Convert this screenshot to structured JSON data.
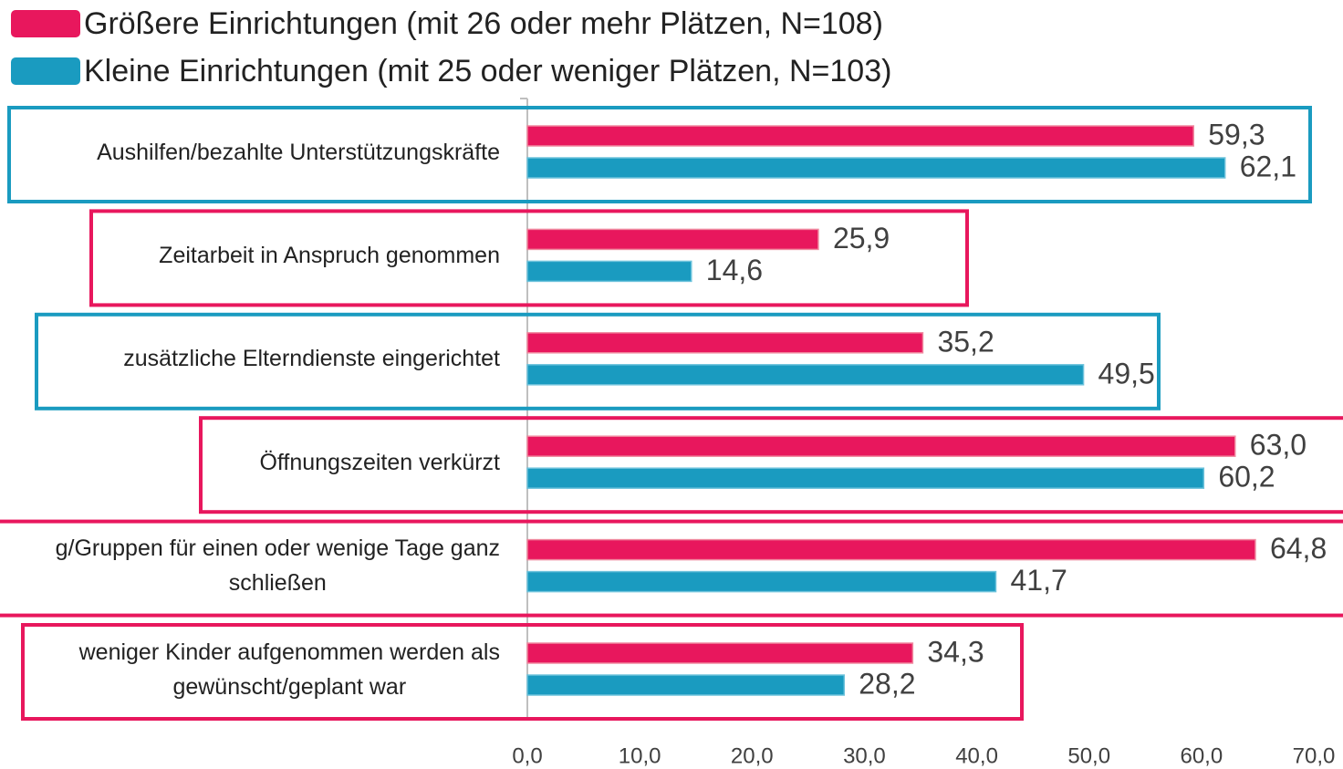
{
  "chart_data": {
    "type": "barh",
    "categories": [
      "Aushilfen/bezahlte Unterstützungskräfte",
      "Zeitarbeit in Anspruch genommen",
      "zusätzliche Elterndienste eingerichtet",
      "Öffnungszeiten verkürzt",
      "g/Gruppen für einen oder wenige Tage ganz\nschließen",
      "weniger Kinder aufgenommen werden als\ngewünscht/geplant war"
    ],
    "series": [
      {
        "name": "Größere Einrichtungen (mit 26 oder mehr Plätzen, N=108)",
        "color": "#e8175d",
        "values": [
          59.3,
          25.9,
          35.2,
          63.0,
          64.8,
          34.3
        ],
        "value_labels": [
          "59,3",
          "25,9",
          "35,2",
          "63,0",
          "64,8",
          "34,3"
        ]
      },
      {
        "name": "Kleine Einrichtungen (mit 25 oder weniger Plätzen, N=103)",
        "color": "#1a9bc0",
        "values": [
          62.1,
          14.6,
          49.5,
          60.2,
          41.7,
          28.2
        ],
        "value_labels": [
          "62,1",
          "14,6",
          "49,5",
          "60,2",
          "41,7",
          "28,2"
        ]
      }
    ],
    "xlim": [
      0,
      70
    ],
    "xticks": [
      {
        "value": 0,
        "label": "0,0"
      },
      {
        "value": 10,
        "label": "10,0"
      },
      {
        "value": 20,
        "label": "20,0"
      },
      {
        "value": 30,
        "label": "30,0"
      },
      {
        "value": 40,
        "label": "40,0"
      },
      {
        "value": 50,
        "label": "50,0"
      },
      {
        "value": 60,
        "label": "60,0"
      },
      {
        "value": 70,
        "label": "70,0"
      }
    ],
    "legend": "top-left"
  }
}
